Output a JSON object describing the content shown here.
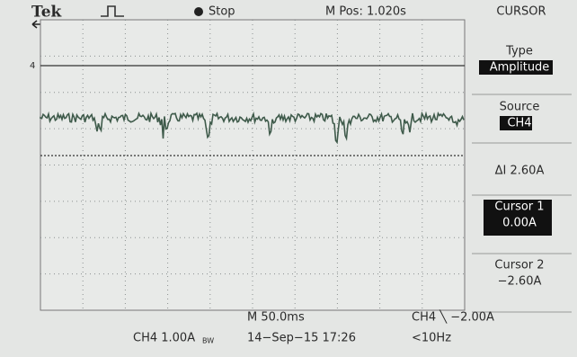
{
  "header": {
    "brand": "Tek",
    "status": "Stop",
    "position": "M Pos: 1.020s",
    "menu_title": "CURSOR"
  },
  "channel_marker": "4",
  "menu": {
    "items": [
      {
        "label": "Type",
        "value": "Amplitude"
      },
      {
        "label": "Source",
        "value": "CH4"
      },
      {
        "label": "ΔI 2.60A"
      },
      {
        "label": "Cursor 1",
        "value": "0.00A"
      },
      {
        "label": "Cursor 2",
        "value": "−2.60A"
      }
    ]
  },
  "footer": {
    "timebase": "M 50.0ms",
    "channel_scale": "CH4 1.00A",
    "bandwidth_mark": "BW",
    "date": "14−Sep−15 17:26",
    "trigger": "CH4 ╲ −2.00A",
    "frequency": "<10Hz"
  }
}
